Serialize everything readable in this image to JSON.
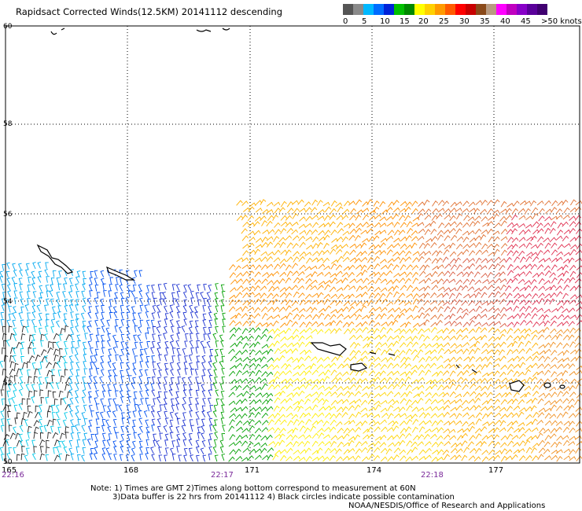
{
  "title": "Rapidsact Corrected Winds(12.5KM) 20141112 descending",
  "legend": {
    "colors": [
      "#555555",
      "#8a8a8a",
      "#00b8ff",
      "#006cff",
      "#0022d8",
      "#00c000",
      "#008800",
      "#ffff00",
      "#ffd000",
      "#ff9a00",
      "#ff5a00",
      "#ff0000",
      "#c80000",
      "#8a4a1a",
      "#b89a80",
      "#ff00ff",
      "#c000c0",
      "#8800c8",
      "#5a009a",
      "#400070"
    ],
    "labels": [
      "0",
      "5",
      "10",
      "15",
      "20",
      "25",
      "30",
      "35",
      "40",
      "45",
      ">50 knots"
    ]
  },
  "map": {
    "lon_labels": [
      "165",
      "168",
      "171",
      "174",
      "177"
    ],
    "lat_labels": [
      "60",
      "58",
      "56",
      "54",
      "52",
      "50"
    ],
    "time_labels": [
      "22:16",
      "22:17",
      "22:18"
    ]
  },
  "notes": {
    "line1": "Note: 1) Times are GMT 2)Times along bottom correspond to measurement at 60N",
    "line2": "3)Data buffer is 22 hrs from 20141112 4) Black circles indicate possible contamination",
    "line3": "NOAA/NESDIS/Office of Research and Applications"
  }
}
